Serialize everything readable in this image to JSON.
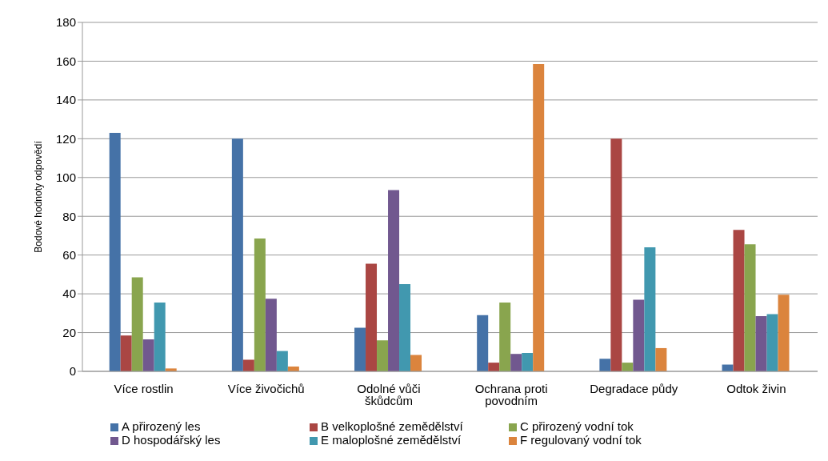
{
  "chart_data": {
    "type": "bar",
    "ylabel": "Bodové hodnoty odpovědí",
    "categories": [
      "Více rostlin",
      "Více živočichů",
      "Odolné vůči škůdcům",
      "Ochrana proti povodním",
      "Degradace půdy",
      "Odtok živin"
    ],
    "series": [
      {
        "name": "A přirozený les",
        "color": "#4572a7",
        "values": [
          123,
          120,
          22.5,
          29,
          6.5,
          3.5
        ]
      },
      {
        "name": "B velkoplošné zemědělství",
        "color": "#aa4643",
        "values": [
          18.5,
          6,
          55.5,
          4.5,
          120,
          73
        ]
      },
      {
        "name": "C přirozený vodní tok",
        "color": "#89a54e",
        "values": [
          48.5,
          68.5,
          16,
          35.5,
          4.5,
          65.5
        ]
      },
      {
        "name": "D hospodářský les",
        "color": "#71588f",
        "values": [
          16.5,
          37.5,
          93.5,
          9,
          37,
          28.5
        ]
      },
      {
        "name": "E maloplošné zemědělství",
        "color": "#4198af",
        "values": [
          35.5,
          10.5,
          45,
          9.5,
          64,
          29.5
        ]
      },
      {
        "name": "F regulovaný vodní tok",
        "color": "#db843d",
        "values": [
          1.5,
          2.5,
          8.5,
          158.5,
          12,
          39.5
        ]
      }
    ],
    "ylim": [
      0,
      180
    ],
    "yticks": [
      0,
      20,
      40,
      60,
      80,
      100,
      120,
      140,
      160,
      180
    ],
    "grid": "y",
    "legend": "bottom"
  }
}
